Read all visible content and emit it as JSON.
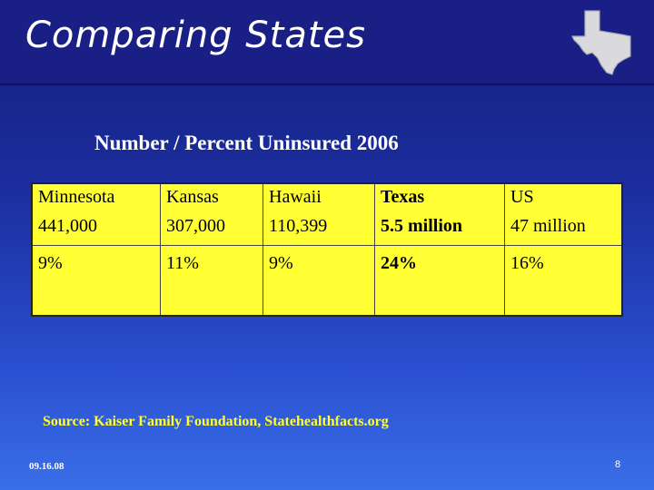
{
  "slide": {
    "title": "Comparing States",
    "subtitle": "Number / Percent Uninsured 2006",
    "source": "Source: Kaiser Family Foundation, Statehealthfacts.org",
    "date": "09.16.08",
    "page_number": "8",
    "logo_icon": "texas-state-outline-icon"
  },
  "table": {
    "states": [
      "Minnesota",
      "Kansas",
      "Hawaii",
      "Texas",
      "US"
    ],
    "numbers": [
      "441,000",
      "307,000",
      "110,399",
      "5.5 million",
      "47 million"
    ],
    "percents": [
      "9%",
      "11%",
      "9%",
      "24%",
      "16%"
    ]
  },
  "colors": {
    "title_bar": "#1a1f86",
    "table_fill": "#ffff33",
    "source_text": "#ffff33"
  }
}
